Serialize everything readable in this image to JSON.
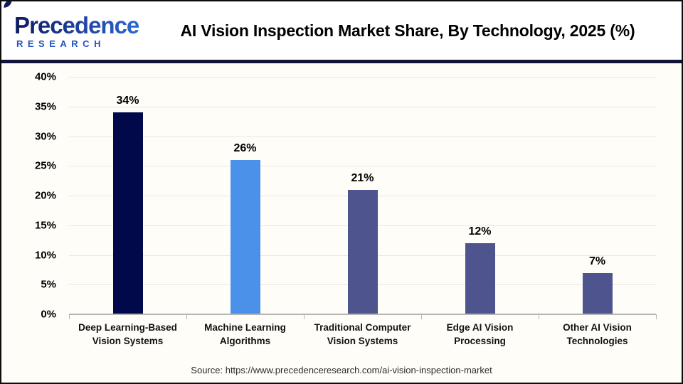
{
  "logo": {
    "word": "Precedence",
    "sub": "RESEARCH"
  },
  "header": {
    "title": "AI Vision Inspection Market Share, By Technology, 2025 (%)"
  },
  "footer": {
    "source": "Source: https://www.precedenceresearch.com/ai-vision-inspection-market"
  },
  "colors": {
    "bar_dark_navy": "#02094B",
    "bar_light_blue": "#4B91E9",
    "bar_slate": "#4E548E",
    "divider_navy": "#111539",
    "gridline": "#E9E7E2",
    "axis": "#B5B5B5"
  },
  "chart_data": {
    "type": "bar",
    "title": "AI Vision Inspection Market Share, By Technology, 2025 (%)",
    "categories": [
      "Deep Learning-Based Vision Systems",
      "Machine Learning Algorithms",
      "Traditional Computer Vision Systems",
      "Edge AI Vision Processing",
      "Other AI Vision Technologies"
    ],
    "values": [
      34,
      26,
      21,
      12,
      7
    ],
    "value_labels": [
      "34%",
      "26%",
      "21%",
      "12%",
      "7%"
    ],
    "bar_colors": [
      "#02094B",
      "#4B91E9",
      "#4E548E",
      "#4E548E",
      "#4E548E"
    ],
    "xlabel": "",
    "ylabel": "",
    "ylim": [
      0,
      40
    ],
    "yticks": [
      {
        "value": 40,
        "label": "40%"
      },
      {
        "value": 35,
        "label": "35%"
      },
      {
        "value": 30,
        "label": "30%"
      },
      {
        "value": 25,
        "label": "25%"
      },
      {
        "value": 20,
        "label": "20%"
      },
      {
        "value": 15,
        "label": "15%"
      },
      {
        "value": 10,
        "label": "10%"
      },
      {
        "value": 5,
        "label": "5%"
      },
      {
        "value": 0,
        "label": "0%"
      }
    ],
    "grid": "horizontal",
    "legend": "none"
  }
}
